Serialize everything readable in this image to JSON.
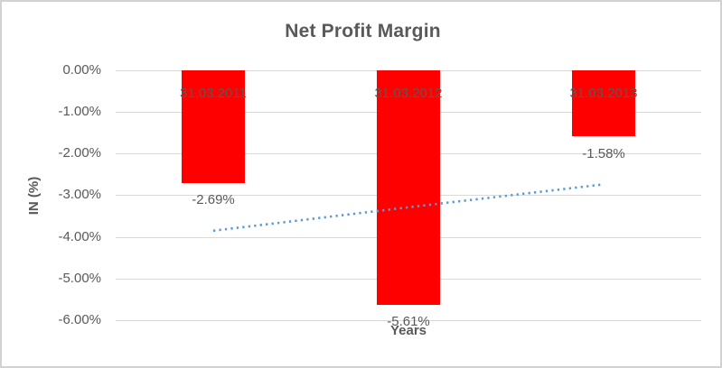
{
  "chart_data": {
    "type": "bar",
    "title": "Net Profit Margin",
    "xlabel": "Years",
    "ylabel": "IN (%)",
    "categories": [
      "31.03.2011",
      "31.03.2012",
      "31.03.2013"
    ],
    "values": [
      -2.69,
      -5.61,
      -1.58
    ],
    "data_labels": [
      "-2.69%",
      "-5.61%",
      "-1.58%"
    ],
    "y_ticks": [
      "0.00%",
      "-1.00%",
      "-2.00%",
      "-3.00%",
      "-4.00%",
      "-5.00%",
      "-6.00%"
    ],
    "ylim": [
      -6,
      0
    ],
    "grid": true,
    "legend": false,
    "bar_color": "#FF0000",
    "text_color": "#595959",
    "gridline_color": "#D9D9D9",
    "trendline": {
      "type": "linear",
      "style": "dotted",
      "color": "#5B9BD5",
      "values": [
        -3.85,
        -3.29,
        -2.74
      ]
    }
  }
}
